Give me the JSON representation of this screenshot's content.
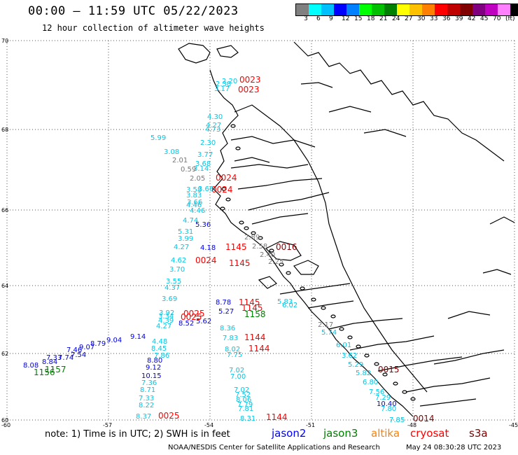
{
  "header": {
    "title": "00:00 – 11:59 UTC 05/22/2023",
    "subtitle": "12 hour collection of altimeter wave heights"
  },
  "colorbar": {
    "colors": [
      "#808080",
      "#00ffff",
      "#00bfff",
      "#0000ff",
      "#0080ff",
      "#00ff00",
      "#00c000",
      "#008000",
      "#ffff00",
      "#ffc000",
      "#ff8000",
      "#ff0000",
      "#c00000",
      "#800000",
      "#800080",
      "#c000c0",
      "#ff80ff",
      "#000000"
    ],
    "labels": [
      "3",
      "6",
      "9",
      "12",
      "15",
      "18",
      "21",
      "24",
      "27",
      "30",
      "33",
      "36",
      "39",
      "42",
      "45",
      "70",
      "(ft)"
    ]
  },
  "axes": {
    "lat_labels": [
      "70",
      "68",
      "66",
      "64",
      "62",
      "60"
    ],
    "lon_labels": [
      "-60",
      "-57",
      "-54",
      "-51",
      "-48",
      "-45"
    ]
  },
  "wave_heights": {
    "cyan": [
      "2.20",
      "2.38",
      "3.17",
      "4.30",
      "4.27",
      "4.73",
      "5.99",
      "3.08",
      "2.30",
      "3.77",
      "3.68",
      "3.14",
      "3.66",
      "3.58",
      "3.83",
      "3.66",
      "4.46",
      "4.46",
      "4.74",
      "5.31",
      "3.99",
      "4.27",
      "4.62",
      "3.70",
      "3.55",
      "4.37",
      "3.69",
      "3.92",
      "3.34",
      "4.39",
      "4.27",
      "4.48",
      "8.45",
      "7.86",
      "8.36",
      "7.83",
      "8.02",
      "7.75",
      "7.02",
      "7.00",
      "7.02",
      "7.52",
      "8.06",
      "7.79",
      "7.81",
      "8.31",
      "5.83",
      "6.02",
      "5.74",
      "6.01",
      "3.62",
      "5.29",
      "5.82",
      "6.80",
      "7.56",
      "7.29",
      "7.80",
      "7.85",
      "8.71",
      "7.36",
      "7.33",
      "8.22",
      "8.37",
      "8.14",
      "6.21",
      "6.01",
      "6.88"
    ],
    "blue": [
      "4.18",
      "5.36",
      "9.14",
      "9.04",
      "8.79",
      "9.07",
      "7.46",
      "7.54",
      "8.84",
      "8.08",
      "7.33",
      "7.74",
      "8.80",
      "9.12",
      "10.15",
      "10.40",
      "5.62",
      "8.52",
      "8.78",
      "5.27"
    ],
    "gray": [
      "2.01",
      "0.59",
      "2.05",
      "2.89",
      "2.58",
      "2.40",
      "2.25",
      "2.17"
    ]
  },
  "pass_times": {
    "red": [
      "0023",
      "0023",
      "0024",
      "0024",
      "0025",
      "0025",
      "0024",
      "1145",
      "1145",
      "1145",
      "1145",
      "1144",
      "1144",
      "1144",
      "0025"
    ],
    "darkred": [
      "0016",
      "0015",
      "0014"
    ],
    "green": [
      "1158",
      "1157",
      "1156"
    ]
  },
  "note": "note: 1) Time is in UTC; 2) SWH is in feet",
  "satellites": [
    {
      "name": "jason2",
      "color": "#0000ff"
    },
    {
      "name": "jason3",
      "color": "#008000"
    },
    {
      "name": "altika",
      "color": "#ff8000"
    },
    {
      "name": "cryosat",
      "color": "#ff0000"
    },
    {
      "name": "s3a",
      "color": "#800000"
    }
  ],
  "footer": {
    "left": "NOAA/NESDIS Center for Satellite Applications and Research",
    "right": "May 24 08:30:28 UTC 2023"
  }
}
